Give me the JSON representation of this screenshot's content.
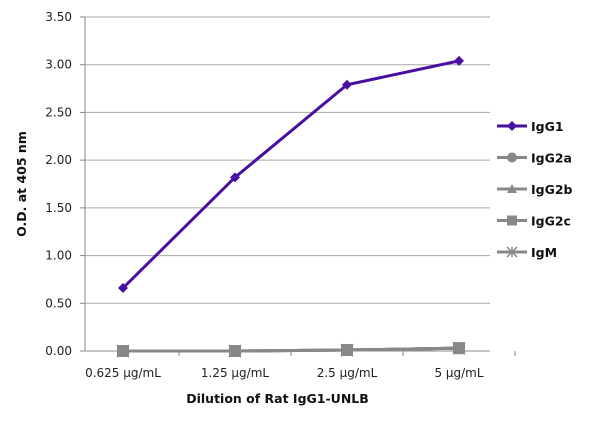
{
  "chart_data": {
    "type": "line",
    "title": "",
    "xlabel": "Dilution of Rat IgG1-UNLB",
    "ylabel": "O.D. at 405 nm",
    "categories": [
      "0.625 µg/mL",
      "1.25 µg/mL",
      "2.5 µg/mL",
      "5 µg/mL"
    ],
    "ylim": [
      0,
      3.5
    ],
    "yticks": [
      "0.00",
      "0.50",
      "1.00",
      "1.50",
      "2.00",
      "2.50",
      "3.00",
      "3.50"
    ],
    "grid": true,
    "legend_position": "right",
    "series": [
      {
        "name": "IgG1",
        "values": [
          0.66,
          1.82,
          2.79,
          3.04
        ],
        "color": "#4b0fa0",
        "marker": "diamond"
      },
      {
        "name": "IgG2a",
        "values": [
          0.0,
          0.0,
          0.01,
          0.03
        ],
        "color": "#888888",
        "marker": "circle"
      },
      {
        "name": "IgG2b",
        "values": [
          0.0,
          0.0,
          0.01,
          0.03
        ],
        "color": "#888888",
        "marker": "triangle"
      },
      {
        "name": "IgG2c",
        "values": [
          0.0,
          0.0,
          0.01,
          0.03
        ],
        "color": "#888888",
        "marker": "square"
      },
      {
        "name": "IgM",
        "values": [
          0.0,
          0.0,
          0.01,
          0.03
        ],
        "color": "#888888",
        "marker": "star"
      }
    ]
  }
}
